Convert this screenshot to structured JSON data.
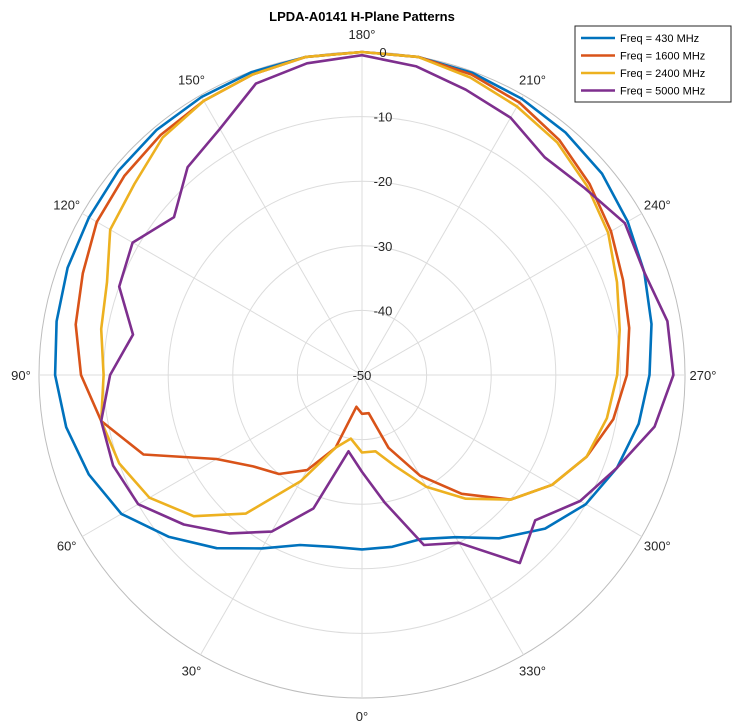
{
  "chart_data": {
    "type": "polar-line",
    "title": "LPDA-A0141 H-Plane Patterns",
    "theta_zero_location": "bottom",
    "theta_direction": "counterclockwise",
    "rlim": [
      -50,
      0
    ],
    "r_ticks": [
      0,
      -10,
      -20,
      -30,
      -40,
      -50
    ],
    "r_tick_labels": [
      "0",
      "-10",
      "-20",
      "-30",
      "-40",
      "-50"
    ],
    "theta_ticks": [
      0,
      30,
      60,
      90,
      120,
      150,
      180,
      210,
      240,
      270,
      300,
      330
    ],
    "theta_tick_labels": [
      "0°",
      "30°",
      "60°",
      "90°",
      "120°",
      "150°",
      "180°",
      "210°",
      "240°",
      "270°",
      "300°",
      "330°"
    ],
    "grid": true,
    "legend_position": "top-right",
    "theta": [
      0,
      10,
      20,
      30,
      40,
      50,
      60,
      70,
      80,
      90,
      100,
      110,
      120,
      130,
      140,
      150,
      160,
      170,
      180,
      190,
      200,
      210,
      220,
      230,
      240,
      250,
      260,
      270,
      280,
      290,
      300,
      310,
      320,
      330,
      340,
      350
    ],
    "series": [
      {
        "name": "Freq = 430 MHz",
        "color": "#0072BD",
        "values": [
          -23,
          -23,
          -22,
          -19,
          -15,
          -11,
          -7,
          -5,
          -3.5,
          -2.5,
          -2,
          -1.5,
          -1.2,
          -0.8,
          -0.5,
          -0.3,
          -0.1,
          0,
          0,
          0,
          -0.2,
          -0.6,
          -1,
          -1.5,
          -2.5,
          -3.5,
          -4.5,
          -5.5,
          -6.5,
          -8,
          -10,
          -13,
          -17,
          -21,
          -23,
          -23
        ]
      },
      {
        "name": "Freq = 1600 MHz",
        "color": "#D95319",
        "values": [
          -44,
          -45,
          -38,
          -33,
          -30,
          -28,
          -24,
          -14,
          -9,
          -6.5,
          -5,
          -4,
          -2.6,
          -2,
          -1.5,
          -1,
          -0.5,
          0,
          0,
          0,
          -0.5,
          -1.3,
          -2.5,
          -4,
          -5.5,
          -7,
          -8,
          -9,
          -10.5,
          -13,
          -16,
          -20,
          -26,
          -32,
          -38,
          -44
        ]
      },
      {
        "name": "Freq = 2400 MHz",
        "color": "#EDB120",
        "values": [
          -38,
          -40,
          -38,
          -31,
          -22,
          -16,
          -12,
          -10,
          -9,
          -10,
          -9,
          -8,
          -5,
          -4,
          -2,
          -1,
          -0.5,
          0,
          0,
          0,
          -1,
          -2,
          -3,
          -4.5,
          -6,
          -8,
          -9.5,
          -10.5,
          -11.5,
          -13,
          -16,
          -20,
          -25,
          -30,
          -35,
          -38
        ]
      },
      {
        "name": "Freq  = 5000 MHz",
        "color": "#7E2F8E",
        "values": [
          -35,
          -38,
          -28,
          -22,
          -18,
          -14,
          -10,
          -9,
          -9,
          -11,
          -14,
          -10,
          -9,
          -12,
          -8,
          -6,
          -2,
          -1,
          -0.5,
          -1.5,
          -3,
          -4,
          -6,
          -5,
          -3,
          -3.5,
          -2,
          -1.8,
          -4,
          -8,
          -11,
          -15,
          -12,
          -20,
          -22,
          -30
        ]
      }
    ]
  }
}
